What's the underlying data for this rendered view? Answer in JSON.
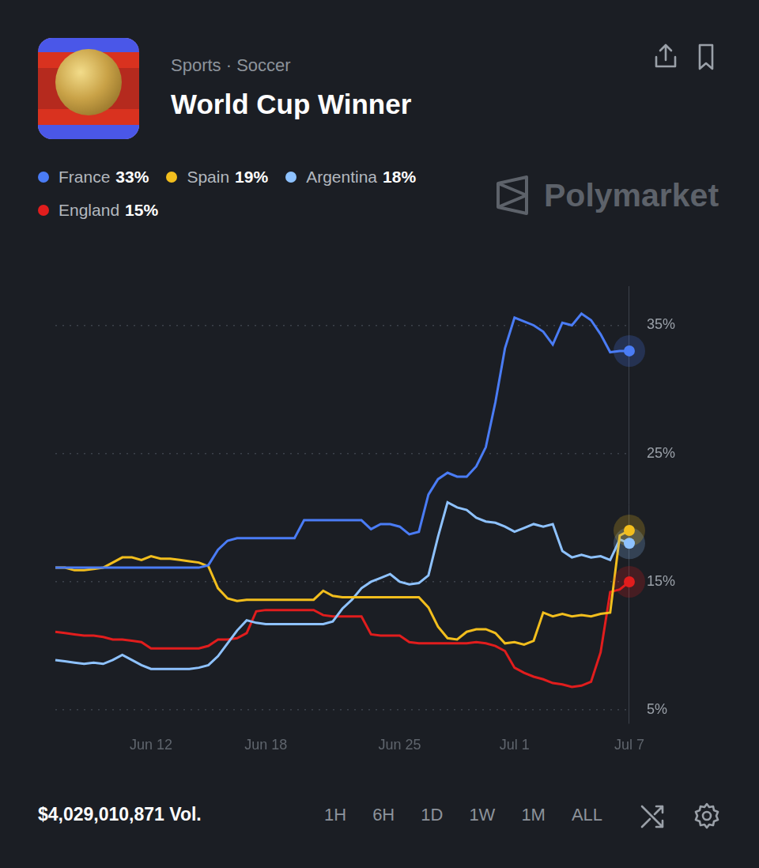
{
  "header": {
    "category": "Sports · Soccer",
    "title": "World Cup Winner"
  },
  "watermark": "Polymarket",
  "chart_data": {
    "type": "line",
    "categories": [
      null,
      null,
      null,
      null,
      null,
      null,
      null,
      null,
      null,
      null,
      "Jun 12",
      null,
      null,
      null,
      null,
      null,
      null,
      null,
      null,
      null,
      null,
      null,
      "Jun 18",
      null,
      null,
      null,
      null,
      null,
      null,
      null,
      null,
      null,
      null,
      null,
      null,
      null,
      "Jun 25",
      null,
      null,
      null,
      null,
      null,
      null,
      null,
      null,
      null,
      null,
      null,
      "Jul 1",
      null,
      null,
      null,
      null,
      null,
      null,
      null,
      null,
      null,
      null,
      null,
      "Jul 7"
    ],
    "series": [
      {
        "name": "France",
        "color": "#4a7cf5",
        "current": 33,
        "current_label": "33%",
        "values": [
          16.1,
          16.1,
          16.1,
          16.1,
          16.1,
          16.1,
          16.1,
          16.1,
          16.1,
          16.1,
          16.1,
          16.1,
          16.1,
          16.1,
          16.1,
          16.1,
          16.3,
          17.5,
          18.2,
          18.4,
          18.4,
          18.4,
          18.4,
          18.4,
          18.4,
          18.4,
          19.8,
          19.8,
          19.8,
          19.8,
          19.8,
          19.8,
          19.8,
          19.1,
          19.5,
          19.5,
          19.3,
          18.7,
          18.9,
          21.8,
          23.0,
          23.5,
          23.2,
          23.2,
          24.0,
          25.5,
          29.0,
          33.2,
          35.6,
          35.3,
          35.0,
          34.5,
          33.5,
          35.2,
          35.0,
          35.9,
          35.4,
          34.3,
          32.9,
          33.0,
          33.0
        ]
      },
      {
        "name": "Spain",
        "color": "#f2be1d",
        "current": 19,
        "current_label": "19%",
        "values": [
          16.1,
          16.1,
          15.9,
          15.9,
          16.0,
          16.1,
          16.5,
          16.9,
          16.9,
          16.7,
          17.0,
          16.8,
          16.8,
          16.7,
          16.6,
          16.5,
          16.2,
          14.5,
          13.7,
          13.5,
          13.6,
          13.6,
          13.6,
          13.6,
          13.6,
          13.6,
          13.6,
          13.6,
          14.3,
          13.9,
          13.8,
          13.8,
          13.8,
          13.8,
          13.8,
          13.8,
          13.8,
          13.8,
          13.8,
          13.0,
          11.5,
          10.6,
          10.5,
          11.1,
          11.3,
          11.3,
          11.0,
          10.2,
          10.3,
          10.1,
          10.4,
          12.6,
          12.3,
          12.5,
          12.3,
          12.4,
          12.3,
          12.5,
          12.6,
          18.6,
          19.0
        ]
      },
      {
        "name": "Argentina",
        "color": "#8ec2ff",
        "current": 18,
        "current_label": "18%",
        "values": [
          8.9,
          8.8,
          8.7,
          8.6,
          8.7,
          8.6,
          8.9,
          9.3,
          8.9,
          8.5,
          8.2,
          8.2,
          8.2,
          8.2,
          8.2,
          8.3,
          8.5,
          9.2,
          10.2,
          11.2,
          12.0,
          11.8,
          11.7,
          11.7,
          11.7,
          11.7,
          11.7,
          11.7,
          11.7,
          11.9,
          12.9,
          13.6,
          14.5,
          15.0,
          15.3,
          15.6,
          15.0,
          14.8,
          14.9,
          15.5,
          18.5,
          21.2,
          20.8,
          20.6,
          20.0,
          19.7,
          19.6,
          19.3,
          18.9,
          19.2,
          19.5,
          19.3,
          19.5,
          17.4,
          16.9,
          17.1,
          16.9,
          17.0,
          16.7,
          18.3,
          18.0
        ]
      },
      {
        "name": "England",
        "color": "#e11d1d",
        "current": 15,
        "current_label": "15%",
        "values": [
          11.1,
          11.0,
          10.9,
          10.8,
          10.8,
          10.7,
          10.5,
          10.5,
          10.4,
          10.3,
          9.8,
          9.8,
          9.8,
          9.8,
          9.8,
          9.8,
          10.0,
          10.5,
          10.5,
          10.6,
          11.0,
          12.7,
          12.8,
          12.8,
          12.8,
          12.8,
          12.8,
          12.8,
          12.4,
          12.3,
          12.3,
          12.3,
          12.3,
          10.9,
          10.8,
          10.8,
          10.8,
          10.3,
          10.2,
          10.2,
          10.2,
          10.2,
          10.2,
          10.2,
          10.3,
          10.2,
          10.0,
          9.6,
          8.3,
          7.9,
          7.6,
          7.4,
          7.1,
          7.0,
          6.8,
          6.9,
          7.2,
          9.5,
          14.2,
          14.4,
          15.0
        ]
      }
    ],
    "ylim": [
      4,
      38
    ],
    "yticks": [
      {
        "value": 5,
        "label": "5%"
      },
      {
        "value": 15,
        "label": "15%"
      },
      {
        "value": 25,
        "label": "25%"
      },
      {
        "value": 35,
        "label": "35%"
      }
    ],
    "grid": true,
    "legend": "top-left"
  },
  "footer": {
    "volume": "$4,029,010,871 Vol.",
    "ranges": [
      "1H",
      "6H",
      "1D",
      "1W",
      "1M",
      "ALL"
    ]
  }
}
